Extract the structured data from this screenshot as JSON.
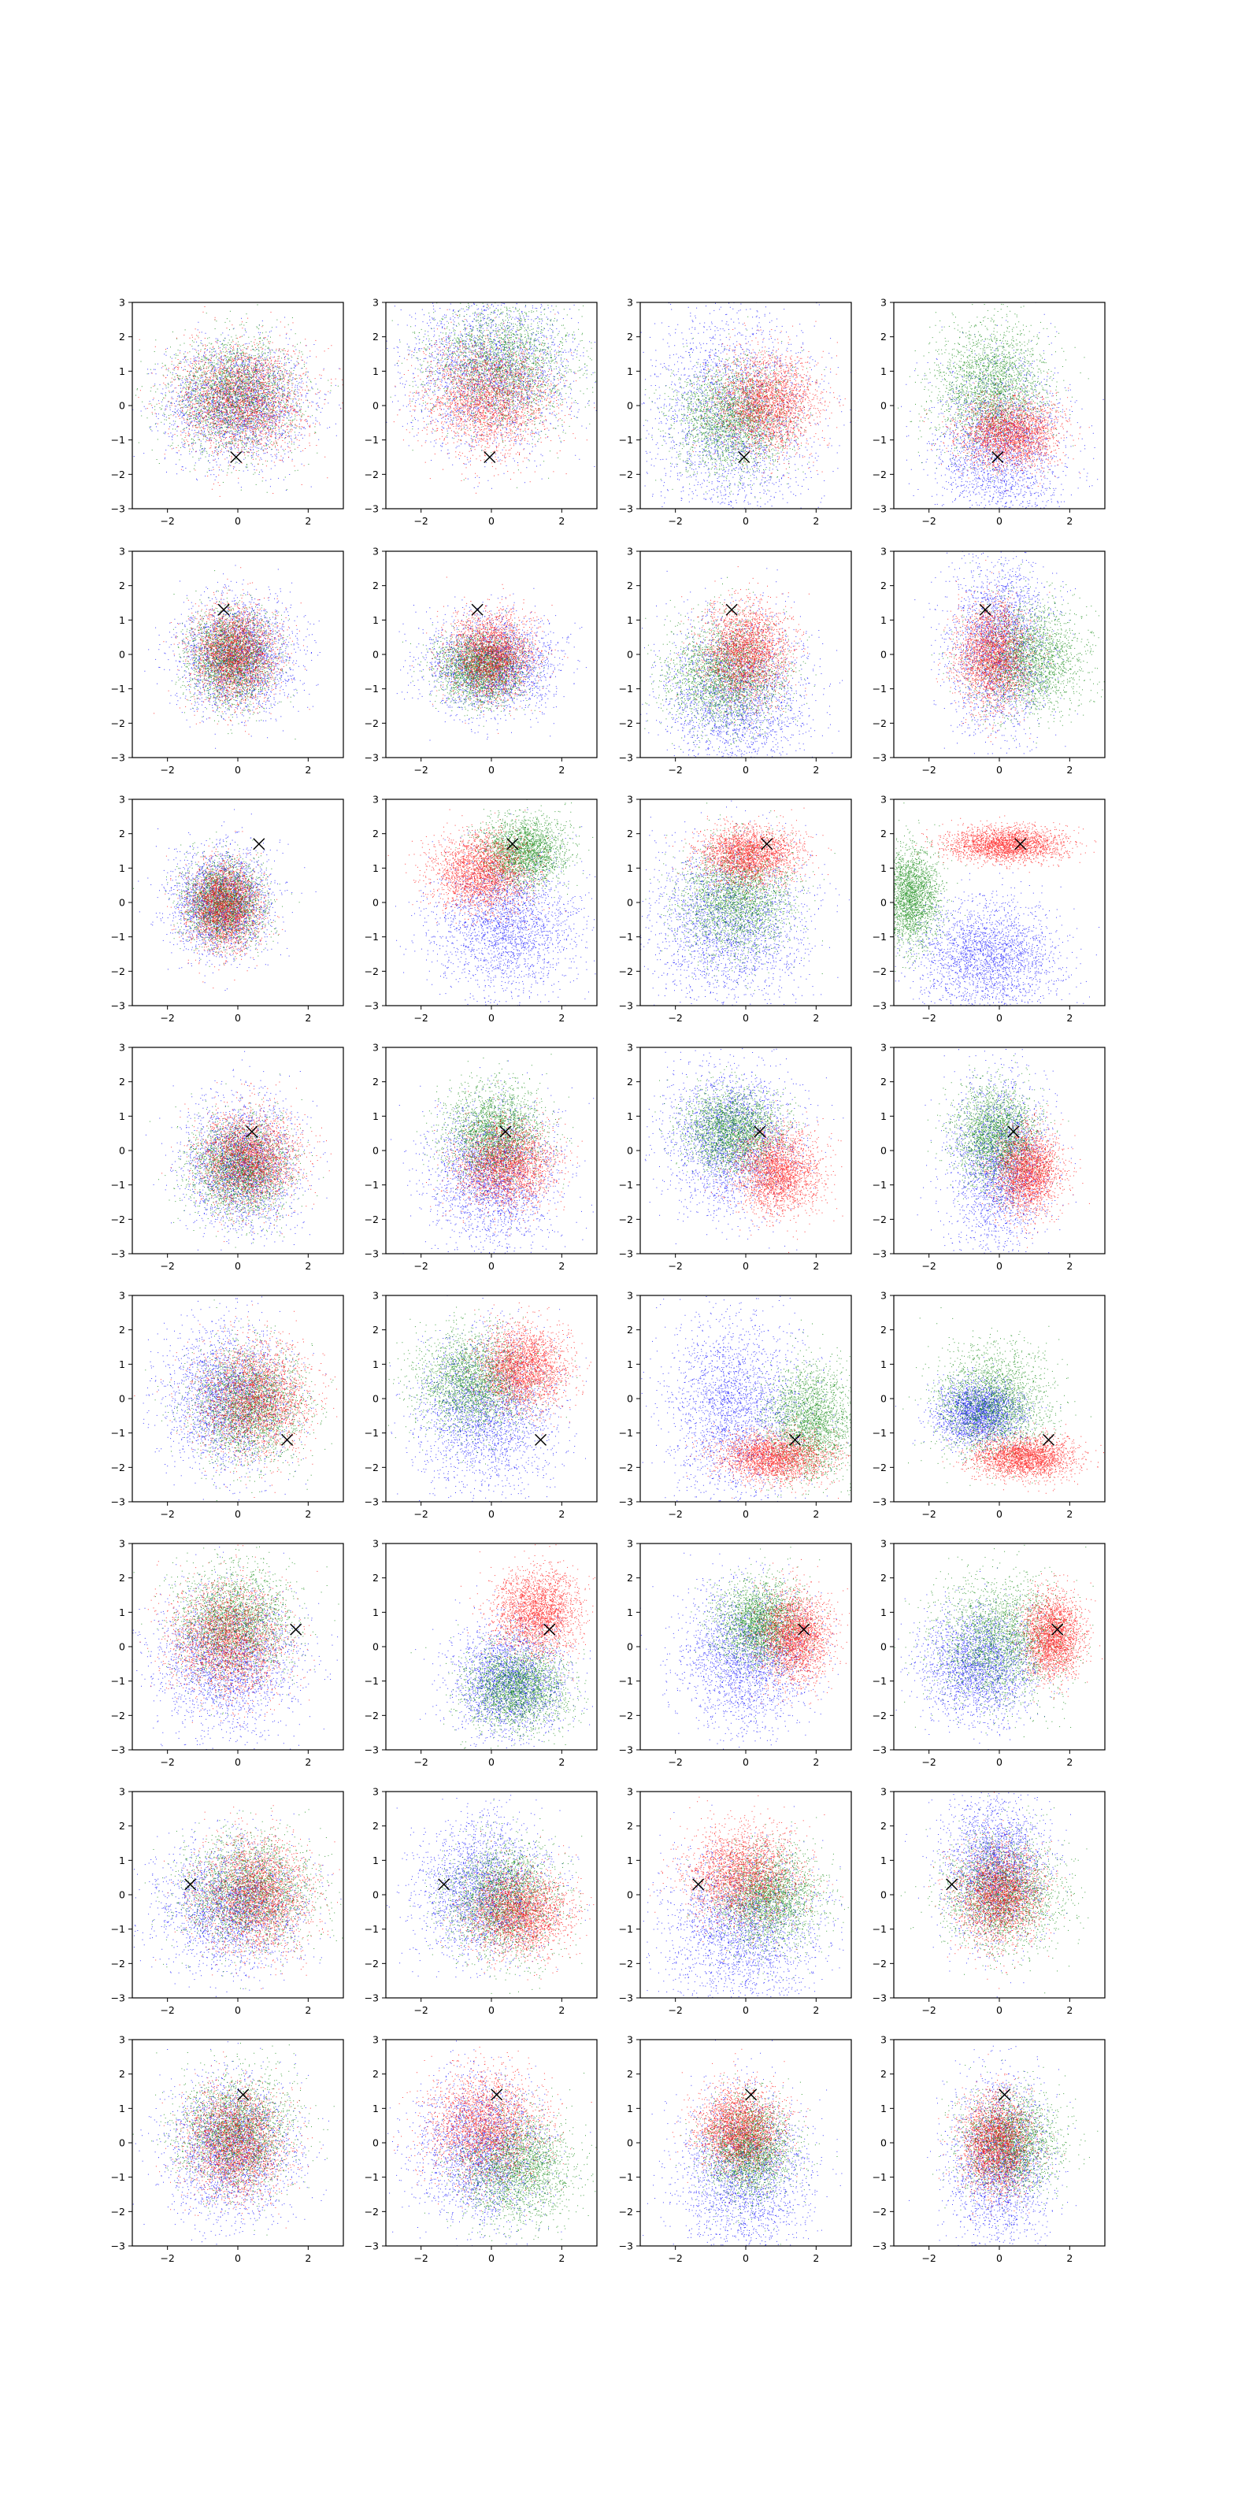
{
  "figure": {
    "rows": 8,
    "cols": 4,
    "description_of_layout": "grid of scatter subplots"
  },
  "style": {
    "series_colors": {
      "blue": "#0000ff",
      "green": "#008000",
      "red": "#ff0000"
    },
    "marker_color": "#000000",
    "marker_symbol": "x",
    "grid": false,
    "legend": "none"
  },
  "axes": {
    "xlim": [
      -3,
      3
    ],
    "ylim": [
      -3,
      3
    ],
    "xticks": [
      -2,
      0,
      2
    ],
    "yticks": [
      -3,
      -2,
      -1,
      0,
      1,
      2,
      3
    ],
    "xtick_labels": [
      "−2",
      "0",
      "2"
    ],
    "ytick_labels": [
      "−3",
      "−2",
      "−1",
      "0",
      "1",
      "2",
      "3"
    ]
  },
  "chart_data": {
    "type": "scatter",
    "xlim": [
      -3,
      3
    ],
    "ylim": [
      -3,
      3
    ],
    "row_markers": [
      [
        -0.05,
        -1.5
      ],
      [
        -0.4,
        1.3
      ],
      [
        0.6,
        1.7
      ],
      [
        0.4,
        0.55
      ],
      [
        1.4,
        -1.2
      ],
      [
        1.65,
        0.5
      ],
      [
        -1.35,
        0.3
      ],
      [
        0.15,
        1.4
      ]
    ],
    "panels": [
      [
        {
          "row": 0,
          "col": 0,
          "blue": {
            "mx": 0,
            "my": 0.1,
            "sx": 1.0,
            "sy": 0.85
          },
          "green": {
            "mx": -0.1,
            "my": 0.3,
            "sx": 0.9,
            "sy": 0.8
          },
          "red": {
            "mx": 0.1,
            "my": 0.2,
            "sx": 0.9,
            "sy": 0.8
          }
        },
        {
          "row": 0,
          "col": 1,
          "blue": {
            "mx": 0,
            "my": 1.0,
            "sx": 1.2,
            "sy": 1.1
          },
          "green": {
            "mx": 0.3,
            "my": 1.2,
            "sx": 1.0,
            "sy": 0.9
          },
          "red": {
            "mx": -0.1,
            "my": 0.2,
            "sx": 0.9,
            "sy": 0.8
          }
        },
        {
          "row": 0,
          "col": 2,
          "blue": {
            "mx": -0.4,
            "my": -0.3,
            "sx": 1.2,
            "sy": 1.6
          },
          "green": {
            "mx": -0.4,
            "my": -0.4,
            "sx": 0.8,
            "sy": 0.8
          },
          "red": {
            "mx": 0.6,
            "my": 0.1,
            "sx": 0.7,
            "sy": 0.7
          }
        },
        {
          "row": 0,
          "col": 3,
          "blue": {
            "mx": 0,
            "my": -1.2,
            "sx": 0.9,
            "sy": 1.2
          },
          "green": {
            "mx": -0.2,
            "my": 0.5,
            "sx": 0.8,
            "sy": 0.9
          },
          "red": {
            "mx": 0.3,
            "my": -0.8,
            "sx": 0.7,
            "sy": 0.5
          }
        }
      ],
      [
        {
          "row": 1,
          "col": 0,
          "blue": {
            "mx": 0,
            "my": 0,
            "sx": 0.8,
            "sy": 0.8
          },
          "green": {
            "mx": -0.2,
            "my": -0.1,
            "sx": 0.6,
            "sy": 0.65
          },
          "red": {
            "mx": -0.1,
            "my": 0,
            "sx": 0.6,
            "sy": 0.7
          }
        },
        {
          "row": 1,
          "col": 1,
          "blue": {
            "mx": 0,
            "my": -0.3,
            "sx": 0.9,
            "sy": 0.7
          },
          "green": {
            "mx": -0.3,
            "my": -0.4,
            "sx": 0.6,
            "sy": 0.5
          },
          "red": {
            "mx": 0,
            "my": 0,
            "sx": 0.6,
            "sy": 0.6
          }
        },
        {
          "row": 1,
          "col": 2,
          "blue": {
            "mx": -0.3,
            "my": -1.2,
            "sx": 1.0,
            "sy": 1.1
          },
          "green": {
            "mx": -0.6,
            "my": -0.6,
            "sx": 0.8,
            "sy": 0.8
          },
          "red": {
            "mx": 0,
            "my": 0.1,
            "sx": 0.6,
            "sy": 0.7
          }
        },
        {
          "row": 1,
          "col": 3,
          "blue": {
            "mx": 0,
            "my": 0.3,
            "sx": 0.7,
            "sy": 1.3
          },
          "green": {
            "mx": 0.8,
            "my": -0.1,
            "sx": 0.8,
            "sy": 0.8
          },
          "red": {
            "mx": -0.2,
            "my": 0,
            "sx": 0.5,
            "sy": 0.75
          }
        }
      ],
      [
        {
          "row": 2,
          "col": 0,
          "blue": {
            "mx": -0.5,
            "my": 0,
            "sx": 0.7,
            "sy": 0.75
          },
          "green": {
            "mx": -0.4,
            "my": 0,
            "sx": 0.55,
            "sy": 0.6
          },
          "red": {
            "mx": -0.4,
            "my": -0.1,
            "sx": 0.5,
            "sy": 0.6
          }
        },
        {
          "row": 2,
          "col": 1,
          "blue": {
            "mx": 0.4,
            "my": -0.6,
            "sx": 1.0,
            "sy": 1.0
          },
          "green": {
            "mx": 0.9,
            "my": 1.5,
            "sx": 0.6,
            "sy": 0.5
          },
          "red": {
            "mx": -0.3,
            "my": 0.9,
            "sx": 0.7,
            "sy": 0.55
          }
        },
        {
          "row": 2,
          "col": 2,
          "blue": {
            "mx": -0.5,
            "my": -0.6,
            "sx": 1.1,
            "sy": 1.2
          },
          "green": {
            "mx": -0.3,
            "my": 0.1,
            "sx": 0.8,
            "sy": 0.8
          },
          "red": {
            "mx": 0.1,
            "my": 1.4,
            "sx": 0.7,
            "sy": 0.4
          }
        },
        {
          "row": 2,
          "col": 3,
          "blue": {
            "mx": -0.3,
            "my": -1.6,
            "sx": 1.0,
            "sy": 0.8
          },
          "green": {
            "mx": -2.5,
            "my": 0.2,
            "sx": 0.4,
            "sy": 0.7
          },
          "red": {
            "mx": 0.2,
            "my": 1.7,
            "sx": 0.8,
            "sy": 0.25
          }
        }
      ],
      [
        {
          "row": 3,
          "col": 0,
          "blue": {
            "mx": 0.1,
            "my": -0.4,
            "sx": 0.8,
            "sy": 0.9
          },
          "green": {
            "mx": 0.1,
            "my": -0.5,
            "sx": 0.7,
            "sy": 0.7
          },
          "red": {
            "mx": 0.3,
            "my": -0.2,
            "sx": 0.7,
            "sy": 0.7
          }
        },
        {
          "row": 3,
          "col": 1,
          "blue": {
            "mx": 0,
            "my": -0.7,
            "sx": 0.9,
            "sy": 1.0
          },
          "green": {
            "mx": 0.1,
            "my": 0.5,
            "sx": 0.7,
            "sy": 0.7
          },
          "red": {
            "mx": 0.4,
            "my": -0.4,
            "sx": 0.7,
            "sy": 0.6
          }
        },
        {
          "row": 3,
          "col": 2,
          "blue": {
            "mx": -0.4,
            "my": 0.3,
            "sx": 0.9,
            "sy": 1.0
          },
          "green": {
            "mx": -0.4,
            "my": 0.6,
            "sx": 0.7,
            "sy": 0.6
          },
          "red": {
            "mx": 0.9,
            "my": -0.6,
            "sx": 0.6,
            "sy": 0.6
          }
        },
        {
          "row": 3,
          "col": 3,
          "blue": {
            "mx": 0,
            "my": -0.4,
            "sx": 0.7,
            "sy": 1.2
          },
          "green": {
            "mx": -0.1,
            "my": 0.4,
            "sx": 0.6,
            "sy": 0.7
          },
          "red": {
            "mx": 0.8,
            "my": -0.6,
            "sx": 0.45,
            "sy": 0.6
          }
        }
      ],
      [
        {
          "row": 4,
          "col": 0,
          "blue": {
            "mx": -0.3,
            "my": 0,
            "sx": 0.9,
            "sy": 1.0
          },
          "green": {
            "mx": 0.3,
            "my": -0.2,
            "sx": 0.8,
            "sy": 0.8
          },
          "red": {
            "mx": 0.5,
            "my": 0,
            "sx": 0.8,
            "sy": 0.8
          }
        },
        {
          "row": 4,
          "col": 1,
          "blue": {
            "mx": -0.2,
            "my": -0.4,
            "sx": 1.0,
            "sy": 1.1
          },
          "green": {
            "mx": -0.5,
            "my": 0.5,
            "sx": 0.8,
            "sy": 0.7
          },
          "red": {
            "mx": 0.9,
            "my": 0.9,
            "sx": 0.6,
            "sy": 0.6
          }
        },
        {
          "row": 4,
          "col": 2,
          "blue": {
            "mx": -0.3,
            "my": -0.3,
            "sx": 1.0,
            "sy": 1.3
          },
          "green": {
            "mx": 1.8,
            "my": -0.7,
            "sx": 0.6,
            "sy": 0.8
          },
          "red": {
            "mx": 0.8,
            "my": -1.7,
            "sx": 0.8,
            "sy": 0.35
          }
        },
        {
          "row": 4,
          "col": 3,
          "blue": {
            "mx": -0.6,
            "my": -0.4,
            "sx": 0.6,
            "sy": 0.45
          },
          "green": {
            "mx": -0.2,
            "my": -0.1,
            "sx": 0.8,
            "sy": 0.8
          },
          "red": {
            "mx": 0.7,
            "my": -1.7,
            "sx": 0.7,
            "sy": 0.3
          }
        }
      ],
      [
        {
          "row": 5,
          "col": 0,
          "blue": {
            "mx": -0.3,
            "my": -0.4,
            "sx": 1.0,
            "sy": 1.0
          },
          "green": {
            "mx": -0.1,
            "my": 0.7,
            "sx": 0.8,
            "sy": 0.8
          },
          "red": {
            "mx": -0.3,
            "my": 0.2,
            "sx": 0.8,
            "sy": 0.8
          }
        },
        {
          "row": 5,
          "col": 1,
          "blue": {
            "mx": 0.5,
            "my": -1.0,
            "sx": 0.8,
            "sy": 0.8
          },
          "green": {
            "mx": 0.7,
            "my": -1.2,
            "sx": 0.7,
            "sy": 0.6
          },
          "red": {
            "mx": 1.3,
            "my": 1.0,
            "sx": 0.6,
            "sy": 0.6
          }
        },
        {
          "row": 5,
          "col": 2,
          "blue": {
            "mx": 0,
            "my": -0.3,
            "sx": 0.9,
            "sy": 1.0
          },
          "green": {
            "mx": 0.4,
            "my": 0.7,
            "sx": 0.6,
            "sy": 0.6
          },
          "red": {
            "mx": 1.4,
            "my": 0.3,
            "sx": 0.5,
            "sy": 0.65
          }
        },
        {
          "row": 5,
          "col": 3,
          "blue": {
            "mx": -0.6,
            "my": -0.5,
            "sx": 0.8,
            "sy": 0.8
          },
          "green": {
            "mx": 0,
            "my": 0.2,
            "sx": 0.9,
            "sy": 0.9
          },
          "red": {
            "mx": 1.5,
            "my": 0.3,
            "sx": 0.4,
            "sy": 0.6
          }
        }
      ],
      [
        {
          "row": 6,
          "col": 0,
          "blue": {
            "mx": -0.2,
            "my": -0.3,
            "sx": 1.0,
            "sy": 0.9
          },
          "green": {
            "mx": 0.3,
            "my": 0.1,
            "sx": 0.9,
            "sy": 0.8
          },
          "red": {
            "mx": 0.5,
            "my": 0,
            "sx": 0.8,
            "sy": 0.8
          }
        },
        {
          "row": 6,
          "col": 1,
          "blue": {
            "mx": -0.2,
            "my": 0.1,
            "sx": 0.9,
            "sy": 1.0
          },
          "green": {
            "mx": 0.3,
            "my": -0.1,
            "sx": 0.8,
            "sy": 0.8
          },
          "red": {
            "mx": 0.8,
            "my": -0.5,
            "sx": 0.7,
            "sy": 0.6
          }
        },
        {
          "row": 6,
          "col": 2,
          "blue": {
            "mx": -0.1,
            "my": -1.0,
            "sx": 1.1,
            "sy": 1.1
          },
          "green": {
            "mx": 0.6,
            "my": -0.1,
            "sx": 0.7,
            "sy": 0.7
          },
          "red": {
            "mx": -0.1,
            "my": 0.6,
            "sx": 0.8,
            "sy": 0.7
          }
        },
        {
          "row": 6,
          "col": 3,
          "blue": {
            "mx": -0.1,
            "my": 0.8,
            "sx": 0.7,
            "sy": 1.0
          },
          "green": {
            "mx": 0.1,
            "my": 0,
            "sx": 0.8,
            "sy": 0.8
          },
          "red": {
            "mx": 0,
            "my": 0,
            "sx": 0.6,
            "sy": 0.7
          }
        }
      ],
      [
        {
          "row": 7,
          "col": 0,
          "blue": {
            "mx": -0.2,
            "my": -0.2,
            "sx": 0.9,
            "sy": 1.0
          },
          "green": {
            "mx": 0,
            "my": 0.3,
            "sx": 0.8,
            "sy": 0.8
          },
          "red": {
            "mx": -0.1,
            "my": 0,
            "sx": 0.7,
            "sy": 0.8
          }
        },
        {
          "row": 7,
          "col": 1,
          "blue": {
            "mx": -0.3,
            "my": -0.2,
            "sx": 0.9,
            "sy": 1.0
          },
          "green": {
            "mx": 0.7,
            "my": -0.7,
            "sx": 0.8,
            "sy": 0.8
          },
          "red": {
            "mx": -0.2,
            "my": 0.5,
            "sx": 0.8,
            "sy": 0.8
          }
        },
        {
          "row": 7,
          "col": 2,
          "blue": {
            "mx": -0.1,
            "my": -0.9,
            "sx": 0.9,
            "sy": 1.2
          },
          "green": {
            "mx": 0.1,
            "my": -0.2,
            "sx": 0.6,
            "sy": 0.7
          },
          "red": {
            "mx": -0.2,
            "my": 0.4,
            "sx": 0.6,
            "sy": 0.6
          }
        },
        {
          "row": 7,
          "col": 3,
          "blue": {
            "mx": 0,
            "my": -0.6,
            "sx": 0.7,
            "sy": 1.2
          },
          "green": {
            "mx": 0.3,
            "my": 0,
            "sx": 0.7,
            "sy": 0.7
          },
          "red": {
            "mx": -0.1,
            "my": 0,
            "sx": 0.5,
            "sy": 0.7
          }
        }
      ]
    ]
  }
}
